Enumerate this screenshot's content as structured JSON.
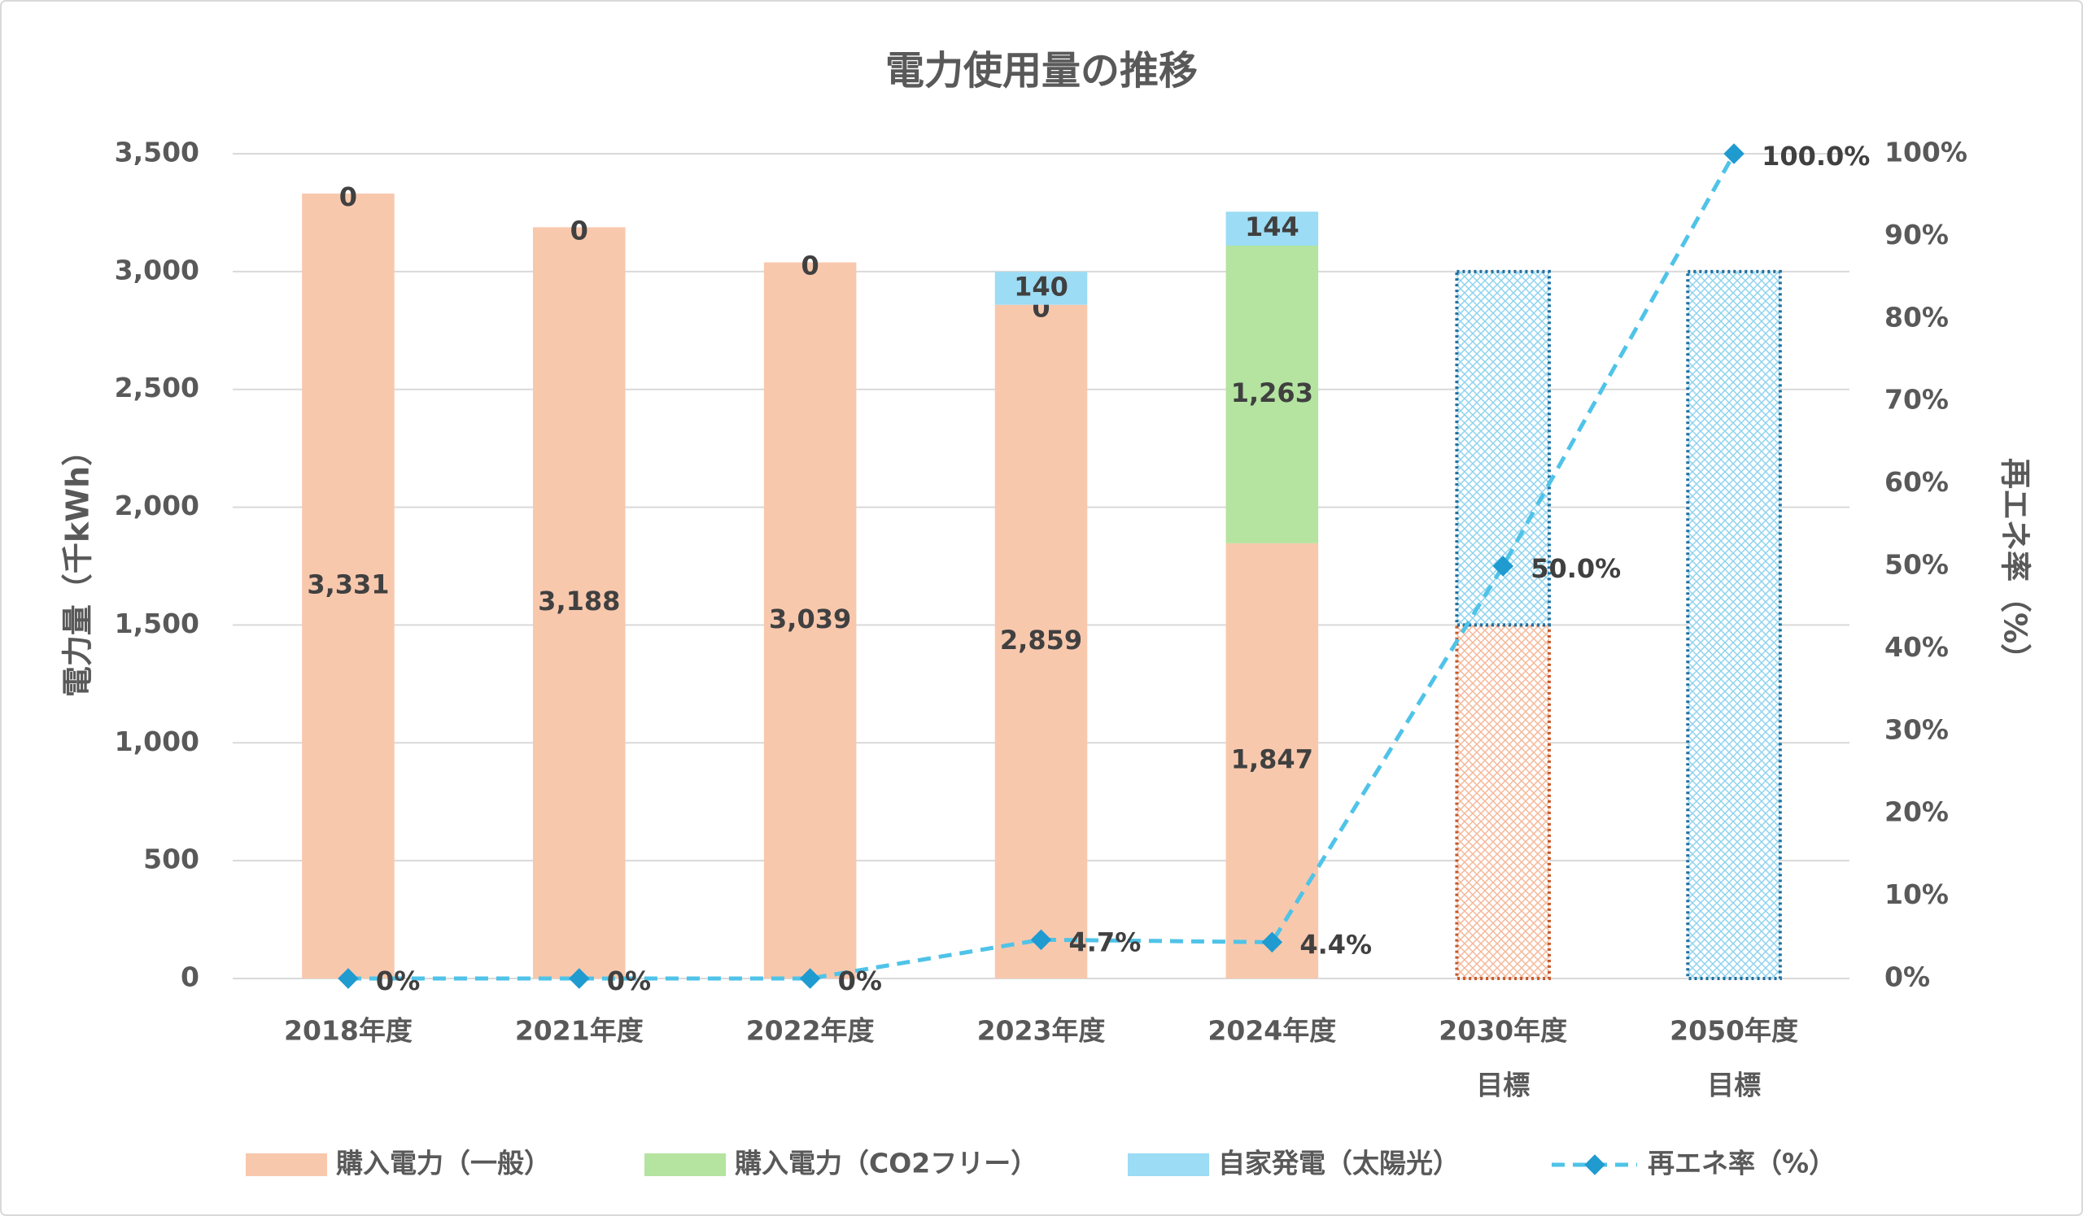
{
  "chart_data": {
    "type": "bar",
    "title": "電力使用量の推移",
    "ylabel": "電力量（千kWh）",
    "y2label": "再エネ率（%）",
    "categories": [
      [
        "2018年度"
      ],
      [
        "2021年度"
      ],
      [
        "2022年度"
      ],
      [
        "2023年度"
      ],
      [
        "2024年度"
      ],
      [
        "2030年度",
        "目標"
      ],
      [
        "2050年度",
        "目標"
      ]
    ],
    "hatched": [
      false,
      false,
      false,
      false,
      false,
      true,
      true
    ],
    "series": [
      {
        "name": "購入電力（一般）",
        "type": "bar",
        "color": "#f8c8ad",
        "border": "#c55a2b",
        "values": [
          3331,
          3188,
          3039,
          2859,
          1847,
          1500,
          null
        ],
        "value_labels": [
          "3,331",
          "3,188",
          "3,039",
          "2,859",
          "1,847",
          null,
          null
        ]
      },
      {
        "name": "購入電力（CO2フリー）",
        "type": "bar",
        "color": "#b4e4a0",
        "border": "#548235",
        "values": [
          0,
          0,
          0,
          0,
          1263,
          null,
          null
        ],
        "value_labels": [
          "0",
          "0",
          "0",
          "0",
          "1,263",
          null,
          null
        ]
      },
      {
        "name": "自家発電（太陽光）",
        "type": "bar",
        "color": "#9cdcf4",
        "border": "#1f6f9f",
        "values": [
          null,
          null,
          null,
          140,
          144,
          1500,
          3000
        ],
        "value_labels": [
          null,
          null,
          null,
          "140",
          "144",
          null,
          null
        ]
      },
      {
        "name": "再エネ率（%）",
        "type": "line",
        "axis": "y2",
        "color": "#4fc3e8",
        "marker_color": "#1f9bd0",
        "dashed": true,
        "values": [
          0,
          0,
          0,
          4.7,
          4.4,
          50,
          100
        ],
        "value_labels": [
          "0%",
          "0%",
          "0%",
          "4.7%",
          "4.4%",
          "50.0%",
          "100.0%"
        ]
      }
    ],
    "ylim": [
      0,
      3500
    ],
    "yticks": [
      0,
      500,
      {
        "value": 1000,
        "label": "1,000"
      },
      {
        "value": 1500,
        "label": "1,500"
      },
      {
        "value": 2000,
        "label": "2,000"
      },
      {
        "value": 2500,
        "label": "2,500"
      },
      {
        "value": 3000,
        "label": "3,000"
      },
      {
        "value": 3500,
        "label": "3,500"
      }
    ],
    "y2lim": [
      0,
      100
    ],
    "y2ticks": [
      {
        "value": 0,
        "label": "0%"
      },
      {
        "value": 10,
        "label": "10%"
      },
      {
        "value": 20,
        "label": "20%"
      },
      {
        "value": 30,
        "label": "30%"
      },
      {
        "value": 40,
        "label": "40%"
      },
      {
        "value": 50,
        "label": "50%"
      },
      {
        "value": 60,
        "label": "60%"
      },
      {
        "value": 70,
        "label": "70%"
      },
      {
        "value": 80,
        "label": "80%"
      },
      {
        "value": 90,
        "label": "90%"
      },
      {
        "value": 100,
        "label": "100%"
      }
    ],
    "grid": true,
    "legend": "bottom"
  }
}
